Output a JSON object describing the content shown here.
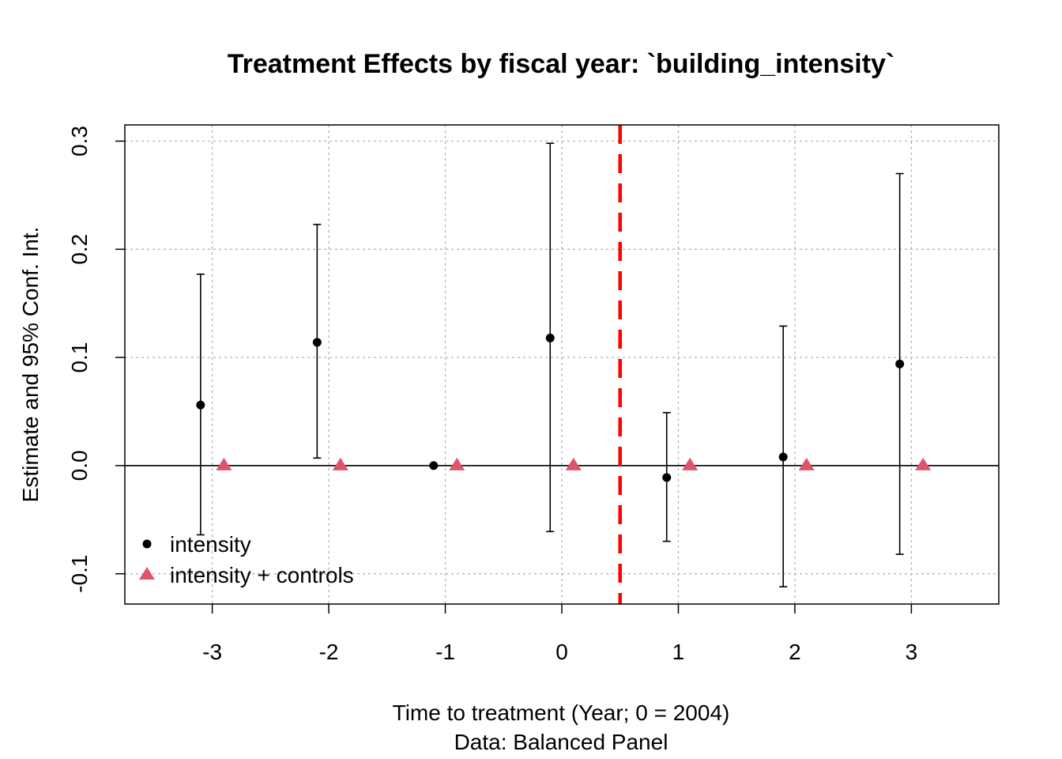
{
  "chart_data": {
    "type": "scatter",
    "title": "Treatment Effects by fiscal year: `building_intensity`",
    "xlabel": "Time to treatment (Year; 0 = 2004)",
    "xlabel_sub": "Data: Balanced Panel",
    "ylabel": "Estimate and 95% Conf. Int.",
    "xlim": [
      -3.75,
      3.75
    ],
    "ylim": [
      -0.128,
      0.315
    ],
    "x_ticks": [
      -3,
      -2,
      -1,
      0,
      1,
      2,
      3
    ],
    "x_tick_labels": [
      "-3",
      "-2",
      "-1",
      "0",
      "1",
      "2",
      "3"
    ],
    "y_ticks": [
      -0.1,
      0.0,
      0.1,
      0.2,
      0.3
    ],
    "y_tick_labels": [
      "-0.1",
      "0.0",
      "0.1",
      "0.2",
      "0.3"
    ],
    "grid": true,
    "zero_line": 0,
    "reference_line": {
      "x": 0.5,
      "style": "dashed",
      "color": "#FF0000"
    },
    "legend_position": "bottom-left",
    "series": [
      {
        "name": "intensity",
        "marker": "circle",
        "color": "#000000",
        "x_offset": -0.1,
        "x": [
          -3,
          -2,
          -1,
          0,
          1,
          2,
          3
        ],
        "y": [
          0.056,
          0.114,
          0.0,
          0.118,
          -0.011,
          0.008,
          0.094
        ],
        "ci_low": [
          -0.064,
          0.007,
          null,
          -0.061,
          -0.07,
          -0.112,
          -0.082
        ],
        "ci_high": [
          0.177,
          0.223,
          null,
          0.298,
          0.049,
          0.129,
          0.27
        ]
      },
      {
        "name": "intensity + controls",
        "marker": "triangle",
        "color": "#DF536B",
        "x_offset": 0.1,
        "x": [
          -3,
          -2,
          -1,
          0,
          1,
          2,
          3
        ],
        "y": [
          0.0,
          0.0,
          0.0,
          0.0,
          0.0,
          0.0,
          0.0
        ]
      }
    ]
  }
}
